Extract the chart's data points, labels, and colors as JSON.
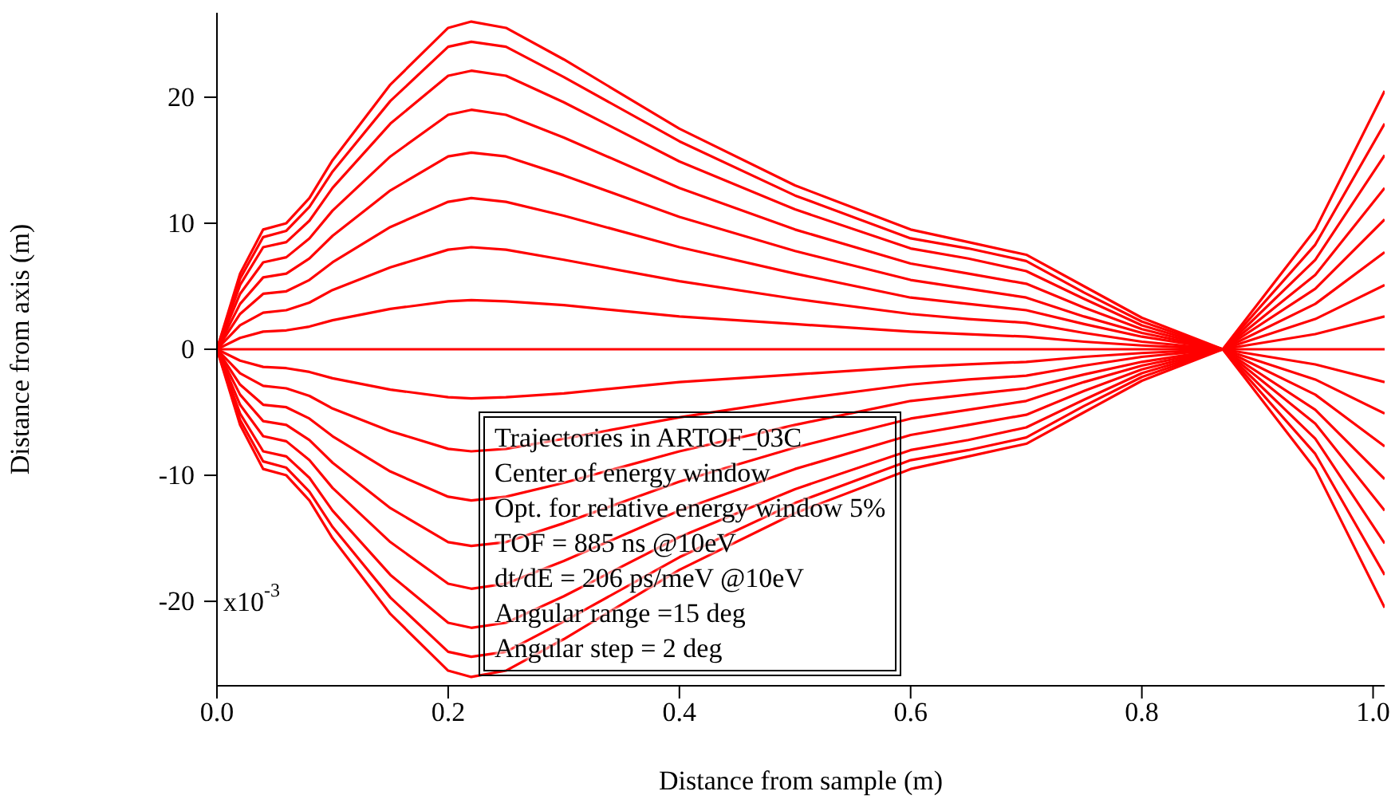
{
  "chart_data": {
    "type": "line",
    "xlabel": "Distance from sample (m)",
    "ylabel": "Distance from axis (m)",
    "x": [
      0,
      0.02,
      0.04,
      0.06,
      0.08,
      0.1,
      0.15,
      0.2,
      0.22,
      0.25,
      0.3,
      0.4,
      0.5,
      0.6,
      0.65,
      0.7,
      0.75,
      0.8,
      0.87,
      0.95,
      1.01
    ],
    "xlim": [
      0,
      1.01
    ],
    "xticks": [
      {
        "value": 0,
        "label": "0.0"
      },
      0.2,
      0.4,
      0.6,
      0.8,
      {
        "value": 1,
        "label": "1.0"
      }
    ],
    "ylim": [
      -26.7,
      26.7
    ],
    "yticks": [
      -20,
      -10,
      0,
      10,
      20
    ],
    "marker": "none",
    "line_style": "solid",
    "series": [
      {
        "color": "#ff0000",
        "values": [
          0,
          6,
          9.5,
          10,
          12,
          15,
          21,
          25.5,
          26,
          25.5,
          23,
          17.5,
          13,
          9.5,
          8.5,
          7.5,
          5,
          2.5,
          0,
          -9.5,
          -20.5
        ]
      },
      {
        "color": "#ff0000",
        "values": [
          0,
          5.6,
          8.9,
          9.4,
          11.3,
          14.1,
          19.7,
          24,
          24.4,
          24,
          21.6,
          16.5,
          12.2,
          8.8,
          8,
          7,
          4.5,
          2.2,
          0,
          -8.3,
          -17.9
        ]
      },
      {
        "color": "#ff0000",
        "values": [
          0,
          5.1,
          8.1,
          8.5,
          10.2,
          12.8,
          17.9,
          21.7,
          22.1,
          21.7,
          19.6,
          14.9,
          11.1,
          8,
          7.2,
          6.2,
          4,
          1.9,
          0,
          -7.1,
          -15.4
        ]
      },
      {
        "color": "#ff0000",
        "values": [
          0,
          4.4,
          6.9,
          7.3,
          8.8,
          11,
          15.3,
          18.6,
          19,
          18.6,
          16.8,
          12.8,
          9.5,
          6.8,
          6,
          5.2,
          3.3,
          1.6,
          0,
          -5.9,
          -12.8
        ]
      },
      {
        "color": "#ff0000",
        "values": [
          0,
          3.6,
          5.7,
          6,
          7.2,
          9,
          12.6,
          15.3,
          15.6,
          15.3,
          13.8,
          10.5,
          7.8,
          5.5,
          4.8,
          4.1,
          2.6,
          1.3,
          0,
          -4.8,
          -10.3
        ]
      },
      {
        "color": "#ff0000",
        "values": [
          0,
          2.8,
          4.4,
          4.6,
          5.5,
          6.9,
          9.7,
          11.7,
          12,
          11.7,
          10.6,
          8.1,
          6,
          4.1,
          3.6,
          3.1,
          2,
          1,
          0,
          -3.6,
          -7.7
        ]
      },
      {
        "color": "#ff0000",
        "values": [
          0,
          1.9,
          2.9,
          3.1,
          3.7,
          4.7,
          6.5,
          7.9,
          8.1,
          7.9,
          7.1,
          5.4,
          4,
          2.8,
          2.4,
          2.1,
          1.3,
          0.6,
          0,
          -2.4,
          -5.1
        ]
      },
      {
        "color": "#ff0000",
        "values": [
          0,
          0.9,
          1.4,
          1.5,
          1.8,
          2.3,
          3.2,
          3.8,
          3.9,
          3.8,
          3.5,
          2.6,
          2,
          1.4,
          1.2,
          1,
          0.6,
          0.3,
          0,
          -1.2,
          -2.6
        ]
      },
      {
        "color": "#ff0000",
        "values": [
          0,
          0,
          0,
          0,
          0,
          0,
          0,
          0,
          0,
          0,
          0,
          0,
          0,
          0,
          0,
          0,
          0,
          0,
          0,
          0,
          0
        ]
      },
      {
        "color": "#ff0000",
        "values": [
          0,
          -0.9,
          -1.4,
          -1.5,
          -1.8,
          -2.3,
          -3.2,
          -3.8,
          -3.9,
          -3.8,
          -3.5,
          -2.6,
          -2,
          -1.4,
          -1.2,
          -1,
          -0.6,
          -0.3,
          0,
          1.2,
          2.6
        ]
      },
      {
        "color": "#ff0000",
        "values": [
          0,
          -1.9,
          -2.9,
          -3.1,
          -3.7,
          -4.7,
          -6.5,
          -7.9,
          -8.1,
          -7.9,
          -7.1,
          -5.4,
          -4,
          -2.8,
          -2.4,
          -2.1,
          -1.3,
          -0.6,
          0,
          2.4,
          5.1
        ]
      },
      {
        "color": "#ff0000",
        "values": [
          0,
          -2.8,
          -4.4,
          -4.6,
          -5.5,
          -6.9,
          -9.7,
          -11.7,
          -12,
          -11.7,
          -10.6,
          -8.1,
          -6,
          -4.1,
          -3.6,
          -3.1,
          -2,
          -1,
          0,
          3.6,
          7.7
        ]
      },
      {
        "color": "#ff0000",
        "values": [
          0,
          -3.6,
          -5.7,
          -6,
          -7.2,
          -9,
          -12.6,
          -15.3,
          -15.6,
          -15.3,
          -13.8,
          -10.5,
          -7.8,
          -5.5,
          -4.8,
          -4.1,
          -2.6,
          -1.3,
          0,
          4.8,
          10.3
        ]
      },
      {
        "color": "#ff0000",
        "values": [
          0,
          -4.4,
          -6.9,
          -7.3,
          -8.8,
          -11,
          -15.3,
          -18.6,
          -19,
          -18.6,
          -16.8,
          -12.8,
          -9.5,
          -6.8,
          -6,
          -5.2,
          -3.3,
          -1.6,
          0,
          5.9,
          12.8
        ]
      },
      {
        "color": "#ff0000",
        "values": [
          0,
          -5.1,
          -8.1,
          -8.5,
          -10.2,
          -12.8,
          -17.9,
          -21.7,
          -22.1,
          -21.7,
          -19.6,
          -14.9,
          -11.1,
          -8,
          -7.2,
          -6.2,
          -4,
          -1.9,
          0,
          7.1,
          15.4
        ]
      },
      {
        "color": "#ff0000",
        "values": [
          0,
          -5.6,
          -8.9,
          -9.4,
          -11.3,
          -14.1,
          -19.7,
          -24,
          -24.4,
          -24,
          -21.6,
          -16.5,
          -12.2,
          -8.8,
          -8,
          -7,
          -4.5,
          -2.2,
          0,
          8.3,
          17.9
        ]
      },
      {
        "color": "#ff0000",
        "values": [
          0,
          -6,
          -9.5,
          -10,
          -12,
          -15,
          -21,
          -25.5,
          -26,
          -25.5,
          -23,
          -17.5,
          -13,
          -9.5,
          -8.5,
          -7.5,
          -5,
          -2.5,
          0,
          9.5,
          20.5
        ]
      }
    ],
    "annotations": [
      "x10$^{-3}$",
      "Trajectories in ARTOF_03C",
      "Center of energy window",
      "Opt. for relative energy window 5%",
      "TOF = 885 ns @10eV",
      "dt/dE = 206 ps/meV @10eV",
      "Angular range =15 deg",
      "Angular step = 2 deg"
    ]
  }
}
